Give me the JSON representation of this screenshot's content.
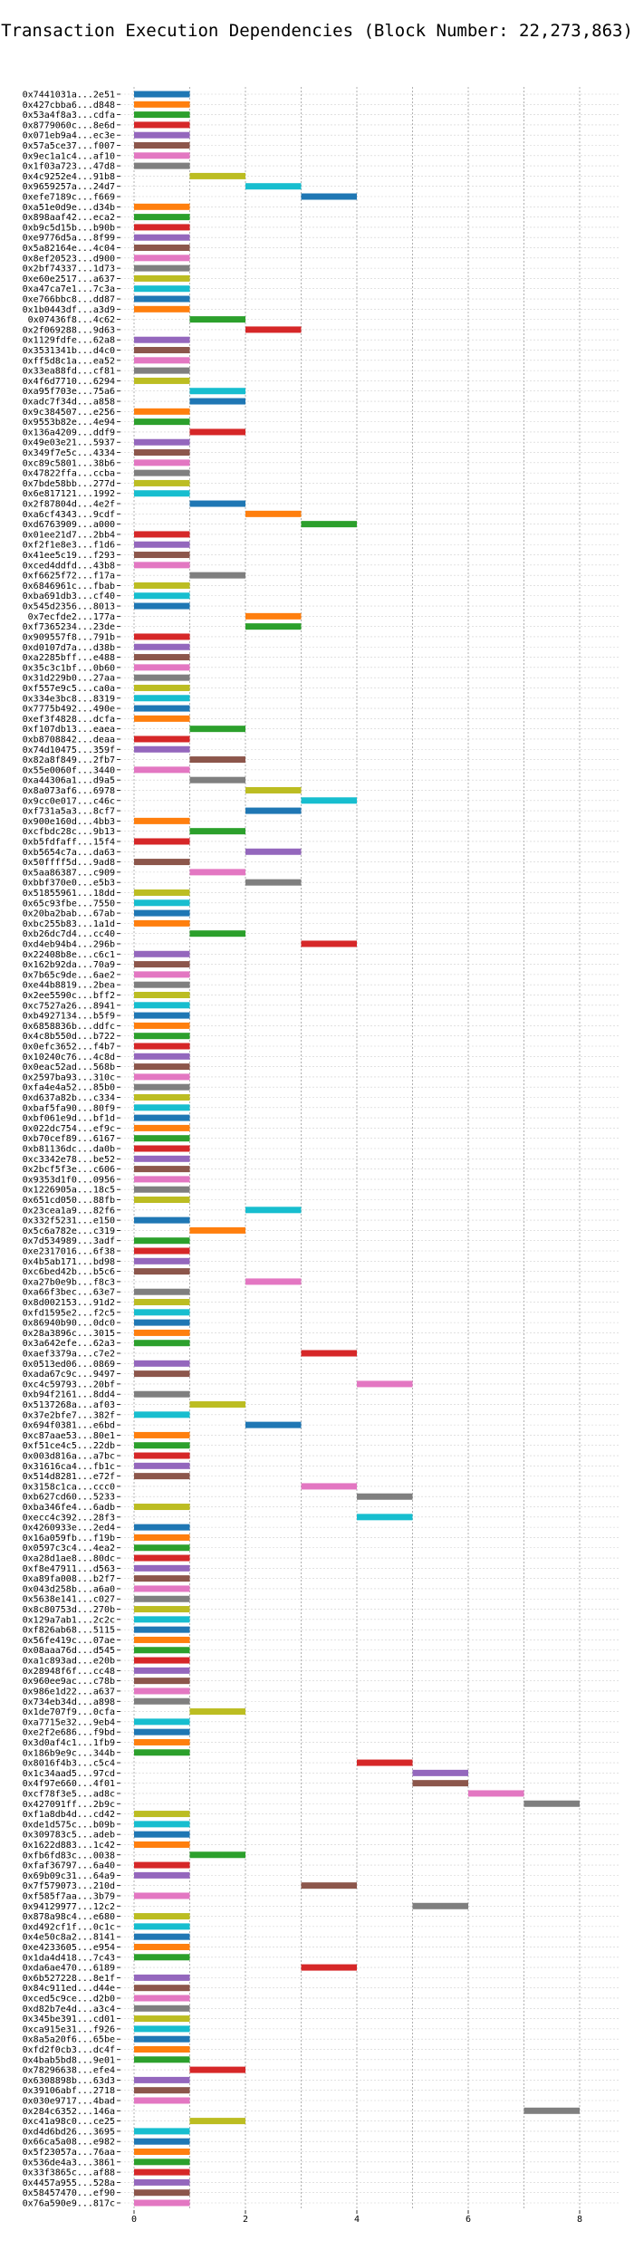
{
  "chart_data": {
    "type": "gantt",
    "title": "Transaction Execution Dependencies (Block Number: 22,273,863)",
    "xlabel": "",
    "ylabel": "",
    "xlim": [
      0,
      8.5
    ],
    "x_ticks": [
      "0",
      "2",
      "4",
      "6",
      "8"
    ],
    "grid": true,
    "colors": [
      "#1f77b4",
      "#ff7f0e",
      "#2ca02c",
      "#d62728",
      "#9467bd",
      "#8c564b",
      "#e377c2",
      "#7f7f7f",
      "#bcbd22",
      "#17becf"
    ],
    "transactions": [
      {
        "hash": "0x7441031a...2e51",
        "start": 0,
        "end": 1
      },
      {
        "hash": "0x427cbba6...d848",
        "start": 0,
        "end": 1
      },
      {
        "hash": "0x53a4f8a3...cdfa",
        "start": 0,
        "end": 1
      },
      {
        "hash": "0x8779060c...8e6d",
        "start": 0,
        "end": 1
      },
      {
        "hash": "0x071eb9a4...ec3e",
        "start": 0,
        "end": 1
      },
      {
        "hash": "0x57a5ce37...f007",
        "start": 0,
        "end": 1
      },
      {
        "hash": "0x9ec1a1c4...af10",
        "start": 0,
        "end": 1
      },
      {
        "hash": "0x1f03a723...47d8",
        "start": 0,
        "end": 1
      },
      {
        "hash": "0x4c9252e4...91b8",
        "start": 1,
        "end": 2
      },
      {
        "hash": "0x9659257a...24d7",
        "start": 2,
        "end": 3
      },
      {
        "hash": "0xefe7189c...f669",
        "start": 3,
        "end": 4
      },
      {
        "hash": "0xa51e0d9e...d34b",
        "start": 0,
        "end": 1
      },
      {
        "hash": "0x898aaf42...eca2",
        "start": 0,
        "end": 1
      },
      {
        "hash": "0xb9c5d15b...b90b",
        "start": 0,
        "end": 1
      },
      {
        "hash": "0xe9776d5a...8f99",
        "start": 0,
        "end": 1
      },
      {
        "hash": "0x5a82164e...4c04",
        "start": 0,
        "end": 1
      },
      {
        "hash": "0x8ef20523...d900",
        "start": 0,
        "end": 1
      },
      {
        "hash": "0x2bf74337...1d73",
        "start": 0,
        "end": 1
      },
      {
        "hash": "0xe60e2517...a637",
        "start": 0,
        "end": 1
      },
      {
        "hash": "0xa47ca7e1...7c3a",
        "start": 0,
        "end": 1
      },
      {
        "hash": "0xe766bbc8...dd87",
        "start": 0,
        "end": 1
      },
      {
        "hash": "0x1b0443df...a3d9",
        "start": 0,
        "end": 1
      },
      {
        "hash": "0x07436f8...4c62",
        "start": 1,
        "end": 2
      },
      {
        "hash": "0x2f069288...9d63",
        "start": 2,
        "end": 3
      },
      {
        "hash": "0x1129fdfe...62a8",
        "start": 0,
        "end": 1
      },
      {
        "hash": "0x3531341b...d4c0",
        "start": 0,
        "end": 1
      },
      {
        "hash": "0xff5d8c1a...ea52",
        "start": 0,
        "end": 1
      },
      {
        "hash": "0x33ea88fd...cf81",
        "start": 0,
        "end": 1
      },
      {
        "hash": "0x4f6d7710...6294",
        "start": 0,
        "end": 1
      },
      {
        "hash": "0xa95f703e...75a6",
        "start": 1,
        "end": 2
      },
      {
        "hash": "0xadc7f34d...a858",
        "start": 1,
        "end": 2
      },
      {
        "hash": "0x9c384507...e256",
        "start": 0,
        "end": 1
      },
      {
        "hash": "0x9553b82e...4e94",
        "start": 0,
        "end": 1
      },
      {
        "hash": "0x136a4209...ddf9",
        "start": 1,
        "end": 2
      },
      {
        "hash": "0x49e03e21...5937",
        "start": 0,
        "end": 1
      },
      {
        "hash": "0x349f7e5c...4334",
        "start": 0,
        "end": 1
      },
      {
        "hash": "0xc89c5801...38b6",
        "start": 0,
        "end": 1
      },
      {
        "hash": "0x47822ffa...ccba",
        "start": 0,
        "end": 1
      },
      {
        "hash": "0x7bde58bb...277d",
        "start": 0,
        "end": 1
      },
      {
        "hash": "0x6e817121...1992",
        "start": 0,
        "end": 1
      },
      {
        "hash": "0x2f87804d...4e2f",
        "start": 1,
        "end": 2
      },
      {
        "hash": "0xa6cf4343...9cdf",
        "start": 2,
        "end": 3
      },
      {
        "hash": "0xd6763909...a000",
        "start": 3,
        "end": 4
      },
      {
        "hash": "0x01ee21d7...2bb4",
        "start": 0,
        "end": 1
      },
      {
        "hash": "0xf2f1e8e3...f1d6",
        "start": 0,
        "end": 1
      },
      {
        "hash": "0x41ee5c19...f293",
        "start": 0,
        "end": 1
      },
      {
        "hash": "0xced4ddfd...43b8",
        "start": 0,
        "end": 1
      },
      {
        "hash": "0xf6625f72...f17a",
        "start": 1,
        "end": 2
      },
      {
        "hash": "0x6846961c...fbab",
        "start": 0,
        "end": 1
      },
      {
        "hash": "0xba691db3...cf40",
        "start": 0,
        "end": 1
      },
      {
        "hash": "0x545d2356...8013",
        "start": 0,
        "end": 1
      },
      {
        "hash": "0x7ecfde2...177a",
        "start": 2,
        "end": 3
      },
      {
        "hash": "0xf7365234...23de",
        "start": 2,
        "end": 3
      },
      {
        "hash": "0x909557f8...791b",
        "start": 0,
        "end": 1
      },
      {
        "hash": "0xd0107d7a...d38b",
        "start": 0,
        "end": 1
      },
      {
        "hash": "0xa2285bff...e488",
        "start": 0,
        "end": 1
      },
      {
        "hash": "0x35c3c1bf...0b60",
        "start": 0,
        "end": 1
      },
      {
        "hash": "0x31d229b0...27aa",
        "start": 0,
        "end": 1
      },
      {
        "hash": "0xf557e9c5...ca0a",
        "start": 0,
        "end": 1
      },
      {
        "hash": "0x334e3bc8...8319",
        "start": 0,
        "end": 1
      },
      {
        "hash": "0x7775b492...490e",
        "start": 0,
        "end": 1
      },
      {
        "hash": "0xef3f4828...dcfa",
        "start": 0,
        "end": 1
      },
      {
        "hash": "0xf107db13...eaea",
        "start": 1,
        "end": 2
      },
      {
        "hash": "0xb8708842...deaa",
        "start": 0,
        "end": 1
      },
      {
        "hash": "0x74d10475...359f",
        "start": 0,
        "end": 1
      },
      {
        "hash": "0x82a8f849...2fb7",
        "start": 1,
        "end": 2
      },
      {
        "hash": "0x55e0060f...3440",
        "start": 0,
        "end": 1
      },
      {
        "hash": "0xa44306a1...d9a5",
        "start": 1,
        "end": 2
      },
      {
        "hash": "0x8a073af6...6978",
        "start": 2,
        "end": 3
      },
      {
        "hash": "0x9cc0e017...c46c",
        "start": 3,
        "end": 4
      },
      {
        "hash": "0xf731a5a3...8cf7",
        "start": 2,
        "end": 3
      },
      {
        "hash": "0x900e160d...4bb3",
        "start": 0,
        "end": 1
      },
      {
        "hash": "0xcfbdc28c...9b13",
        "start": 1,
        "end": 2
      },
      {
        "hash": "0xb5fdfaff...15f4",
        "start": 0,
        "end": 1
      },
      {
        "hash": "0xb5654c7a...da63",
        "start": 2,
        "end": 3
      },
      {
        "hash": "0x50ffff5d...9ad8",
        "start": 0,
        "end": 1
      },
      {
        "hash": "0x5aa86387...c909",
        "start": 1,
        "end": 2
      },
      {
        "hash": "0xbbf370e0...e5b3",
        "start": 2,
        "end": 3
      },
      {
        "hash": "0x51855961...18dd",
        "start": 0,
        "end": 1
      },
      {
        "hash": "0x65c93fbe...7550",
        "start": 0,
        "end": 1
      },
      {
        "hash": "0x20ba2bab...67ab",
        "start": 0,
        "end": 1
      },
      {
        "hash": "0xbc255b83...1a1d",
        "start": 0,
        "end": 1
      },
      {
        "hash": "0xb26dc7d4...cc40",
        "start": 1,
        "end": 2
      },
      {
        "hash": "0xd4eb94b4...296b",
        "start": 3,
        "end": 4
      },
      {
        "hash": "0x22408b8e...c6c1",
        "start": 0,
        "end": 1
      },
      {
        "hash": "0x162b92da...70a9",
        "start": 0,
        "end": 1
      },
      {
        "hash": "0x7b65c9de...6ae2",
        "start": 0,
        "end": 1
      },
      {
        "hash": "0xe44b8819...2bea",
        "start": 0,
        "end": 1
      },
      {
        "hash": "0x2ee5590c...bff2",
        "start": 0,
        "end": 1
      },
      {
        "hash": "0xc7527a26...8941",
        "start": 0,
        "end": 1
      },
      {
        "hash": "0xb4927134...b5f9",
        "start": 0,
        "end": 1
      },
      {
        "hash": "0x6858836b...ddfc",
        "start": 0,
        "end": 1
      },
      {
        "hash": "0x4c8b550d...b722",
        "start": 0,
        "end": 1
      },
      {
        "hash": "0x0efc3652...f4b7",
        "start": 0,
        "end": 1
      },
      {
        "hash": "0x10240c76...4c8d",
        "start": 0,
        "end": 1
      },
      {
        "hash": "0x0eac52ad...568b",
        "start": 0,
        "end": 1
      },
      {
        "hash": "0x2597ba93...310c",
        "start": 0,
        "end": 1
      },
      {
        "hash": "0xfa4e4a52...85b0",
        "start": 0,
        "end": 1
      },
      {
        "hash": "0xd637a82b...c334",
        "start": 0,
        "end": 1
      },
      {
        "hash": "0xbaf5fa90...80f9",
        "start": 0,
        "end": 1
      },
      {
        "hash": "0xbf061e9d...bf1d",
        "start": 0,
        "end": 1
      },
      {
        "hash": "0x022dc754...ef9c",
        "start": 0,
        "end": 1
      },
      {
        "hash": "0xb70cef89...6167",
        "start": 0,
        "end": 1
      },
      {
        "hash": "0xb81136dc...da0b",
        "start": 0,
        "end": 1
      },
      {
        "hash": "0xc3342e78...be52",
        "start": 0,
        "end": 1
      },
      {
        "hash": "0x2bcf5f3e...c606",
        "start": 0,
        "end": 1
      },
      {
        "hash": "0x9353d1f0...0956",
        "start": 0,
        "end": 1
      },
      {
        "hash": "0x1226905a...18c5",
        "start": 0,
        "end": 1
      },
      {
        "hash": "0x651cd050...88fb",
        "start": 0,
        "end": 1
      },
      {
        "hash": "0x23cea1a9...82f6",
        "start": 2,
        "end": 3
      },
      {
        "hash": "0x332f5231...e150",
        "start": 0,
        "end": 1
      },
      {
        "hash": "0x5c6a782e...c319",
        "start": 1,
        "end": 2
      },
      {
        "hash": "0x7d534989...3adf",
        "start": 0,
        "end": 1
      },
      {
        "hash": "0xe2317016...6f38",
        "start": 0,
        "end": 1
      },
      {
        "hash": "0x4b5ab171...bd98",
        "start": 0,
        "end": 1
      },
      {
        "hash": "0xc6bed42b...b5c6",
        "start": 0,
        "end": 1
      },
      {
        "hash": "0xa27b0e9b...f8c3",
        "start": 2,
        "end": 3
      },
      {
        "hash": "0xa66f3bec...63e7",
        "start": 0,
        "end": 1
      },
      {
        "hash": "0x8d002153...91d2",
        "start": 0,
        "end": 1
      },
      {
        "hash": "0xfd1595e2...f2c5",
        "start": 0,
        "end": 1
      },
      {
        "hash": "0x86940b90...0dc0",
        "start": 0,
        "end": 1
      },
      {
        "hash": "0x28a3896c...3015",
        "start": 0,
        "end": 1
      },
      {
        "hash": "0x3a642efe...62a3",
        "start": 0,
        "end": 1
      },
      {
        "hash": "0xaef3379a...c7e2",
        "start": 3,
        "end": 4
      },
      {
        "hash": "0x0513ed06...0869",
        "start": 0,
        "end": 1
      },
      {
        "hash": "0xada67c9c...9497",
        "start": 0,
        "end": 1
      },
      {
        "hash": "0xc4c59793...20bf",
        "start": 4,
        "end": 5
      },
      {
        "hash": "0xb94f2161...8dd4",
        "start": 0,
        "end": 1
      },
      {
        "hash": "0x5137268a...af03",
        "start": 1,
        "end": 2
      },
      {
        "hash": "0x37e2bfe7...382f",
        "start": 0,
        "end": 1
      },
      {
        "hash": "0x694f0381...e6bd",
        "start": 2,
        "end": 3
      },
      {
        "hash": "0xc87aae53...80e1",
        "start": 0,
        "end": 1
      },
      {
        "hash": "0xf51ce4c5...22db",
        "start": 0,
        "end": 1
      },
      {
        "hash": "0x003d816a...a7bc",
        "start": 0,
        "end": 1
      },
      {
        "hash": "0x31616ca4...fb1c",
        "start": 0,
        "end": 1
      },
      {
        "hash": "0x514d8281...e72f",
        "start": 0,
        "end": 1
      },
      {
        "hash": "0x3158c1ca...ccc0",
        "start": 3,
        "end": 4
      },
      {
        "hash": "0xb627cd60...5233",
        "start": 4,
        "end": 5
      },
      {
        "hash": "0xba346fe4...6adb",
        "start": 0,
        "end": 1
      },
      {
        "hash": "0xecc4c392...28f3",
        "start": 4,
        "end": 5
      },
      {
        "hash": "0x4260933e...2ed4",
        "start": 0,
        "end": 1
      },
      {
        "hash": "0x16a059fb...f19b",
        "start": 0,
        "end": 1
      },
      {
        "hash": "0x0597c3c4...4ea2",
        "start": 0,
        "end": 1
      },
      {
        "hash": "0xa28d1ae8...80dc",
        "start": 0,
        "end": 1
      },
      {
        "hash": "0xf8e47911...d563",
        "start": 0,
        "end": 1
      },
      {
        "hash": "0xa89fa008...b2f7",
        "start": 0,
        "end": 1
      },
      {
        "hash": "0x043d258b...a6a0",
        "start": 0,
        "end": 1
      },
      {
        "hash": "0x5638e141...c027",
        "start": 0,
        "end": 1
      },
      {
        "hash": "0x8c80753d...270b",
        "start": 0,
        "end": 1
      },
      {
        "hash": "0x129a7ab1...2c2c",
        "start": 0,
        "end": 1
      },
      {
        "hash": "0xf826ab68...5115",
        "start": 0,
        "end": 1
      },
      {
        "hash": "0x56fe419c...07ae",
        "start": 0,
        "end": 1
      },
      {
        "hash": "0x08aaa76d...d545",
        "start": 0,
        "end": 1
      },
      {
        "hash": "0xa1c893ad...e20b",
        "start": 0,
        "end": 1
      },
      {
        "hash": "0x28948f6f...cc48",
        "start": 0,
        "end": 1
      },
      {
        "hash": "0x960ee9ac...c78b",
        "start": 0,
        "end": 1
      },
      {
        "hash": "0x986e1d22...a637",
        "start": 0,
        "end": 1
      },
      {
        "hash": "0x734eb34d...a898",
        "start": 0,
        "end": 1
      },
      {
        "hash": "0x1de707f9...0cfa",
        "start": 1,
        "end": 2
      },
      {
        "hash": "0xa7715e32...9eb4",
        "start": 0,
        "end": 1
      },
      {
        "hash": "0xe2f2e686...f9bd",
        "start": 0,
        "end": 1
      },
      {
        "hash": "0x3d0af4c1...1fb9",
        "start": 0,
        "end": 1
      },
      {
        "hash": "0x186b9e9c...344b",
        "start": 0,
        "end": 1
      },
      {
        "hash": "0x8016f4b3...c5c4",
        "start": 4,
        "end": 5
      },
      {
        "hash": "0x1c34aad5...97cd",
        "start": 5,
        "end": 6
      },
      {
        "hash": "0x4f97e660...4f01",
        "start": 5,
        "end": 6
      },
      {
        "hash": "0xcf78f3e5...ad8c",
        "start": 6,
        "end": 7
      },
      {
        "hash": "0x427091ff...2b9c",
        "start": 7,
        "end": 8
      },
      {
        "hash": "0xf1a8db4d...cd42",
        "start": 0,
        "end": 1
      },
      {
        "hash": "0xde1d575c...b09b",
        "start": 0,
        "end": 1
      },
      {
        "hash": "0x309783c5...adeb",
        "start": 0,
        "end": 1
      },
      {
        "hash": "0x1622d883...1c42",
        "start": 0,
        "end": 1
      },
      {
        "hash": "0xfb6fd83c...0038",
        "start": 1,
        "end": 2
      },
      {
        "hash": "0xfaf36797...6a40",
        "start": 0,
        "end": 1
      },
      {
        "hash": "0x69b09c31...64a9",
        "start": 0,
        "end": 1
      },
      {
        "hash": "0x7f579073...210d",
        "start": 3,
        "end": 4
      },
      {
        "hash": "0xf585f7aa...3b79",
        "start": 0,
        "end": 1
      },
      {
        "hash": "0x94129977...12c2",
        "start": 5,
        "end": 6
      },
      {
        "hash": "0x878a98c4...e680",
        "start": 0,
        "end": 1
      },
      {
        "hash": "0xd492cf1f...0c1c",
        "start": 0,
        "end": 1
      },
      {
        "hash": "0x4e50c8a2...8141",
        "start": 0,
        "end": 1
      },
      {
        "hash": "0xe4233605...e954",
        "start": 0,
        "end": 1
      },
      {
        "hash": "0x1da4d418...7c43",
        "start": 0,
        "end": 1
      },
      {
        "hash": "0xda6ae470...6189",
        "start": 3,
        "end": 4
      },
      {
        "hash": "0x6b527228...8e1f",
        "start": 0,
        "end": 1
      },
      {
        "hash": "0x84c911ed...d44e",
        "start": 0,
        "end": 1
      },
      {
        "hash": "0xced5c9ce...d2b0",
        "start": 0,
        "end": 1
      },
      {
        "hash": "0xd82b7e4d...a3c4",
        "start": 0,
        "end": 1
      },
      {
        "hash": "0x345be391...cd01",
        "start": 0,
        "end": 1
      },
      {
        "hash": "0xca915e31...f926",
        "start": 0,
        "end": 1
      },
      {
        "hash": "0x8a5a20f6...65be",
        "start": 0,
        "end": 1
      },
      {
        "hash": "0xfd2f0cb3...dc4f",
        "start": 0,
        "end": 1
      },
      {
        "hash": "0x4bab5bd8...9e01",
        "start": 0,
        "end": 1
      },
      {
        "hash": "0x78296638...efe4",
        "start": 1,
        "end": 2
      },
      {
        "hash": "0x6308898b...63d3",
        "start": 0,
        "end": 1
      },
      {
        "hash": "0x39106abf...2718",
        "start": 0,
        "end": 1
      },
      {
        "hash": "0x030e9717...4bad",
        "start": 0,
        "end": 1
      },
      {
        "hash": "0x284c6352...146a",
        "start": 7,
        "end": 8
      },
      {
        "hash": "0xc41a98c0...ce25",
        "start": 1,
        "end": 2
      },
      {
        "hash": "0xd4d6bd26...3695",
        "start": 0,
        "end": 1
      },
      {
        "hash": "0x66ca5a08...e982",
        "start": 0,
        "end": 1
      },
      {
        "hash": "0x5f23057a...76aa",
        "start": 0,
        "end": 1
      },
      {
        "hash": "0x536de4a3...3861",
        "start": 0,
        "end": 1
      },
      {
        "hash": "0x33f3865c...af88",
        "start": 0,
        "end": 1
      },
      {
        "hash": "0x4457a955...528a",
        "start": 0,
        "end": 1
      },
      {
        "hash": "0x58457470...ef90",
        "start": 0,
        "end": 1
      },
      {
        "hash": "0x76a590e9...817c",
        "start": 0,
        "end": 1
      }
    ]
  }
}
